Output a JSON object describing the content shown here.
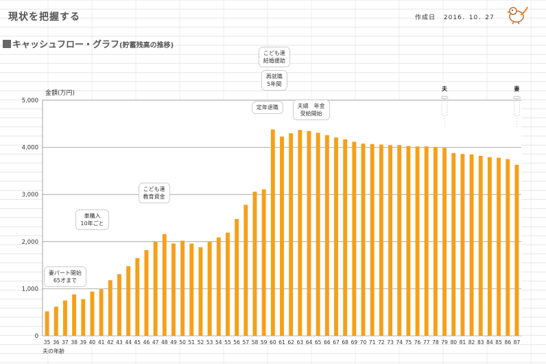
{
  "header": {
    "title": "現状を把握する",
    "date_label": "作成日",
    "date_value": "2016．10．27"
  },
  "section": {
    "title": "キャッシュフロー・グラフ",
    "subtitle": "(貯蓄残高の推移)"
  },
  "chart_data": {
    "type": "bar",
    "ylabel": "金額(万円)",
    "xlabel": "夫の年齢",
    "ylim": [
      0,
      5000
    ],
    "yticks": [
      "0",
      "1,000",
      "2,000",
      "3,000",
      "4,000",
      "5,000"
    ],
    "grid": true,
    "bar_color": "#f5a01a",
    "categories": [
      "35",
      "36",
      "37",
      "38",
      "39",
      "40",
      "41",
      "42",
      "43",
      "44",
      "45",
      "46",
      "47",
      "48",
      "49",
      "50",
      "51",
      "52",
      "53",
      "54",
      "55",
      "56",
      "57",
      "58",
      "59",
      "60",
      "61",
      "62",
      "63",
      "64",
      "65",
      "66",
      "67",
      "68",
      "69",
      "70",
      "71",
      "72",
      "73",
      "74",
      "75",
      "76",
      "77",
      "78",
      "79",
      "80",
      "81",
      "82",
      "83",
      "84",
      "85",
      "86",
      "87"
    ],
    "values": [
      520,
      620,
      750,
      880,
      780,
      940,
      990,
      1180,
      1310,
      1480,
      1650,
      1820,
      2000,
      2160,
      1960,
      2020,
      1960,
      1880,
      2000,
      2090,
      2190,
      2480,
      2780,
      3060,
      3110,
      4380,
      4230,
      4300,
      4370,
      4350,
      4310,
      4260,
      4210,
      4170,
      4120,
      4080,
      4070,
      4060,
      4050,
      4050,
      4030,
      4020,
      4020,
      4010,
      3990,
      3880,
      3860,
      3850,
      3820,
      3790,
      3780,
      3750,
      3630
    ],
    "annotations": [
      {
        "lines": [
          "妻パート開始",
          "65才まで"
        ],
        "at": "37"
      },
      {
        "lines": [
          "車購入",
          "10年ごと"
        ],
        "at": "40"
      },
      {
        "lines": [
          "こども達",
          "教育資金"
        ],
        "at": "47"
      },
      {
        "lines": [
          "定年退職"
        ],
        "at": "60"
      },
      {
        "lines": [
          "再就職",
          "5年間"
        ],
        "at": "60"
      },
      {
        "lines": [
          "こども達",
          "結婚援助"
        ],
        "at": "60"
      },
      {
        "lines": [
          "夫婦　年金",
          "受給開始"
        ],
        "at": "65"
      }
    ],
    "markers": [
      {
        "label": "夫",
        "at": "79"
      },
      {
        "label": "妻",
        "at": "87"
      }
    ]
  }
}
